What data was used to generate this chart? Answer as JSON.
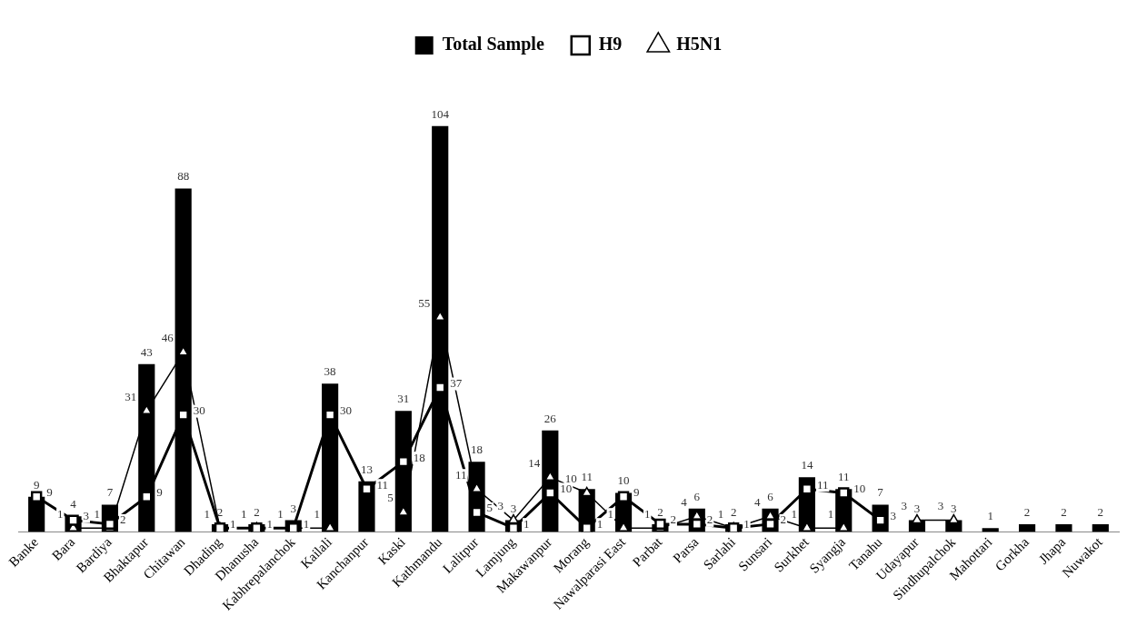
{
  "chart_data": {
    "type": "bar",
    "categories": [
      "Banke",
      "Bara",
      "Bardiya",
      "Bhaktapur",
      "Chitawan",
      "Dhading",
      "Dhanusha",
      "Kabhrepalanchok",
      "Kailali",
      "Kanchanpur",
      "Kaski",
      "Kathmandu",
      "Lalitpur",
      "Lamjung",
      "Makawanpur",
      "Morang",
      "Nawalparasi East",
      "Parbat",
      "Parsa",
      "Sarlahi",
      "Sunsari",
      "Surkhet",
      "Syangja",
      "Tanahu",
      "Udayapur",
      "Sindhupalchok",
      "Mahottari",
      "Gorkha",
      "Jhapa",
      "Nuwakot"
    ],
    "series": [
      {
        "name": "Total Sample",
        "color": "#000000",
        "values": [
          9,
          4,
          7,
          43,
          88,
          2,
          2,
          3,
          38,
          13,
          31,
          104,
          18,
          3,
          26,
          11,
          10,
          2,
          6,
          2,
          6,
          14,
          11,
          7,
          3,
          3,
          1,
          2,
          2,
          2
        ]
      },
      {
        "name": "H9",
        "type": "line",
        "marker": "square",
        "color": "#000000",
        "values": [
          9,
          3,
          2,
          9,
          30,
          1,
          1,
          1,
          30,
          11,
          18,
          37,
          5,
          1,
          10,
          1,
          9,
          2,
          2,
          1,
          2,
          11,
          10,
          3,
          null,
          null,
          null,
          null,
          null,
          null
        ]
      },
      {
        "name": "H5N1",
        "type": "line",
        "marker": "triangle",
        "color": "#000000",
        "values": [
          null,
          1,
          1,
          31,
          46,
          1,
          1,
          1,
          1,
          null,
          5,
          55,
          11,
          3,
          14,
          10,
          1,
          1,
          4,
          1,
          4,
          1,
          1,
          null,
          3,
          3,
          null,
          null,
          null,
          null
        ]
      }
    ],
    "data_labels": true,
    "legend": "top",
    "grid": false,
    "tick_labels": "x"
  }
}
